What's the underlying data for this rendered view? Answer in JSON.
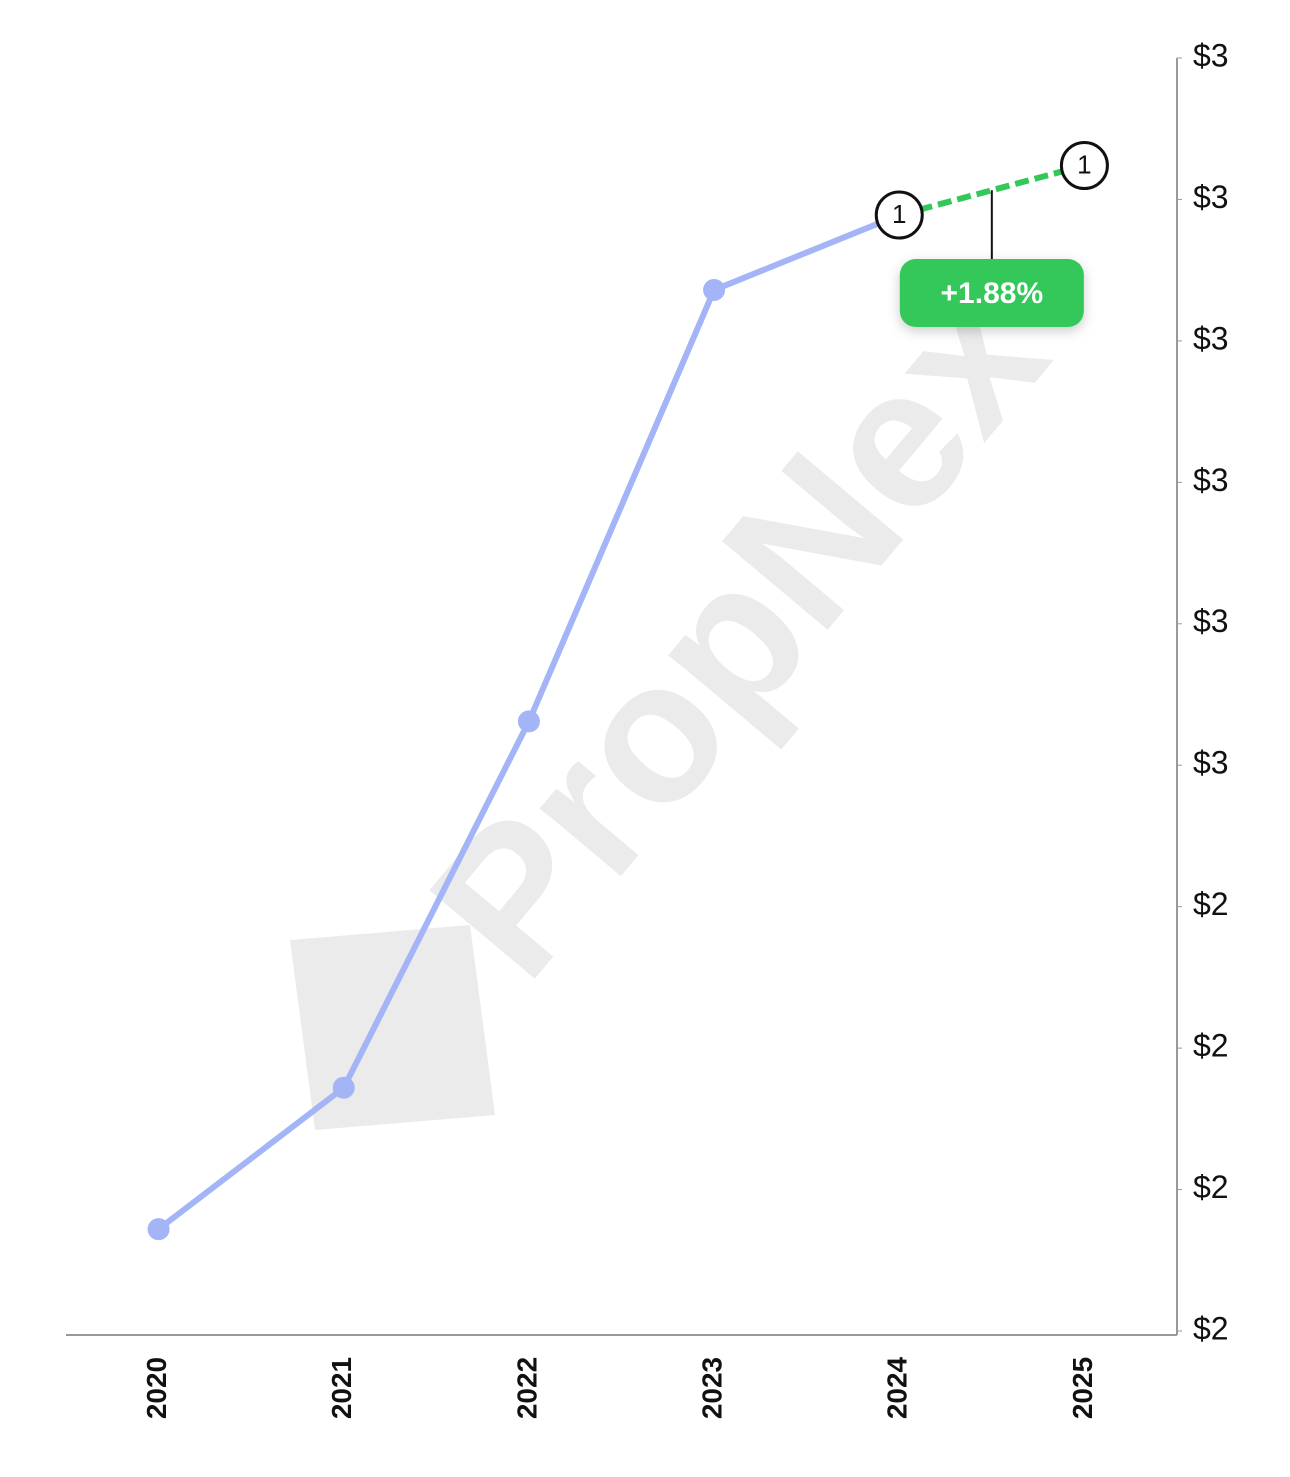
{
  "chart_data": {
    "type": "line",
    "watermark": "PropNex",
    "categories": [
      "2020",
      "2021",
      "2022",
      "2023",
      "2024",
      "2025"
    ],
    "series": [
      {
        "color": "#a3b4f7",
        "values": [
          2.172,
          2.272,
          2.531,
          2.836,
          2.889,
          2.924
        ]
      }
    ],
    "projection_color": "#34c759",
    "markers": [
      {
        "x": "2024",
        "label": "1"
      },
      {
        "x": "2025",
        "label": "1"
      }
    ],
    "annotation": "+1.88%",
    "ylim": [
      2.1,
      3.0
    ],
    "yticks": [
      {
        "value": 2.1,
        "label": "$2"
      },
      {
        "value": 2.2,
        "label": "$2"
      },
      {
        "value": 2.3,
        "label": "$2"
      },
      {
        "value": 2.4,
        "label": "$2"
      },
      {
        "value": 2.5,
        "label": "$3"
      },
      {
        "value": 2.6,
        "label": "$3"
      },
      {
        "value": 2.7,
        "label": "$3"
      },
      {
        "value": 2.8,
        "label": "$3"
      },
      {
        "value": 2.9,
        "label": "$3"
      },
      {
        "value": 3.0,
        "label": "$3"
      }
    ]
  }
}
